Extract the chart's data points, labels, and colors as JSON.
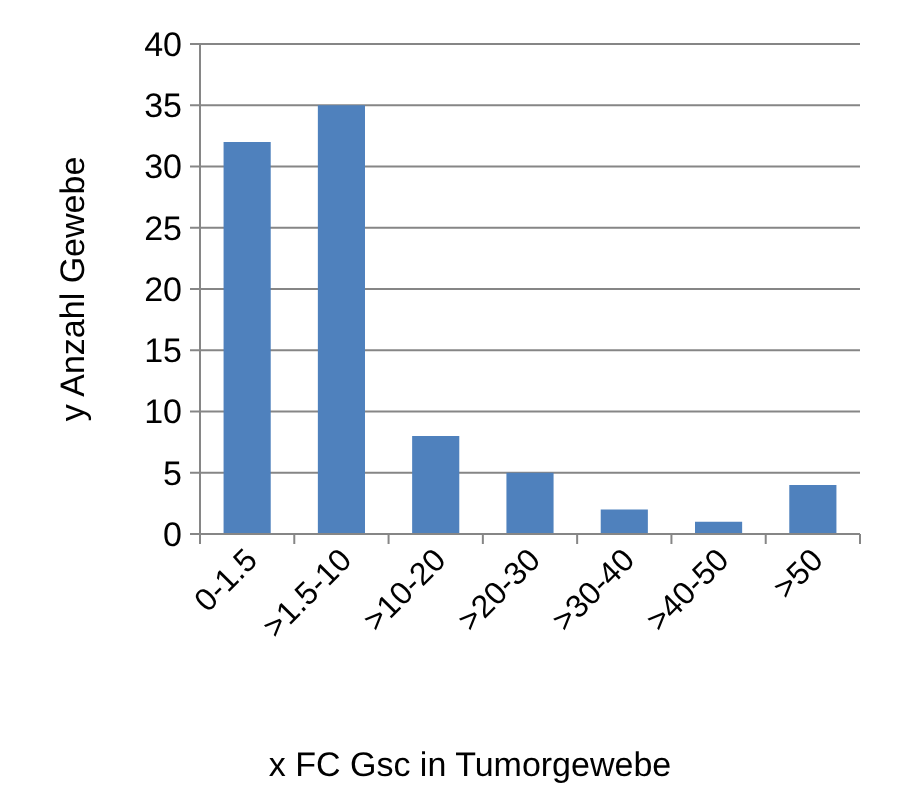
{
  "chart_data": {
    "type": "bar",
    "xlabel": "x FC Gsc in Tumorgewebe",
    "ylabel": "y Anzahl Gewebe",
    "categories": [
      "0-1.5",
      ">1.5-10",
      ">10-20",
      ">20-30",
      ">30-40",
      ">40-50",
      ">50"
    ],
    "values": [
      32,
      35,
      8,
      5,
      2,
      1,
      4
    ],
    "color": "#4f81bd",
    "ylim": [
      0,
      40
    ],
    "yticks": [
      0,
      5,
      10,
      15,
      20,
      25,
      30,
      35,
      40
    ],
    "grid": "y"
  }
}
